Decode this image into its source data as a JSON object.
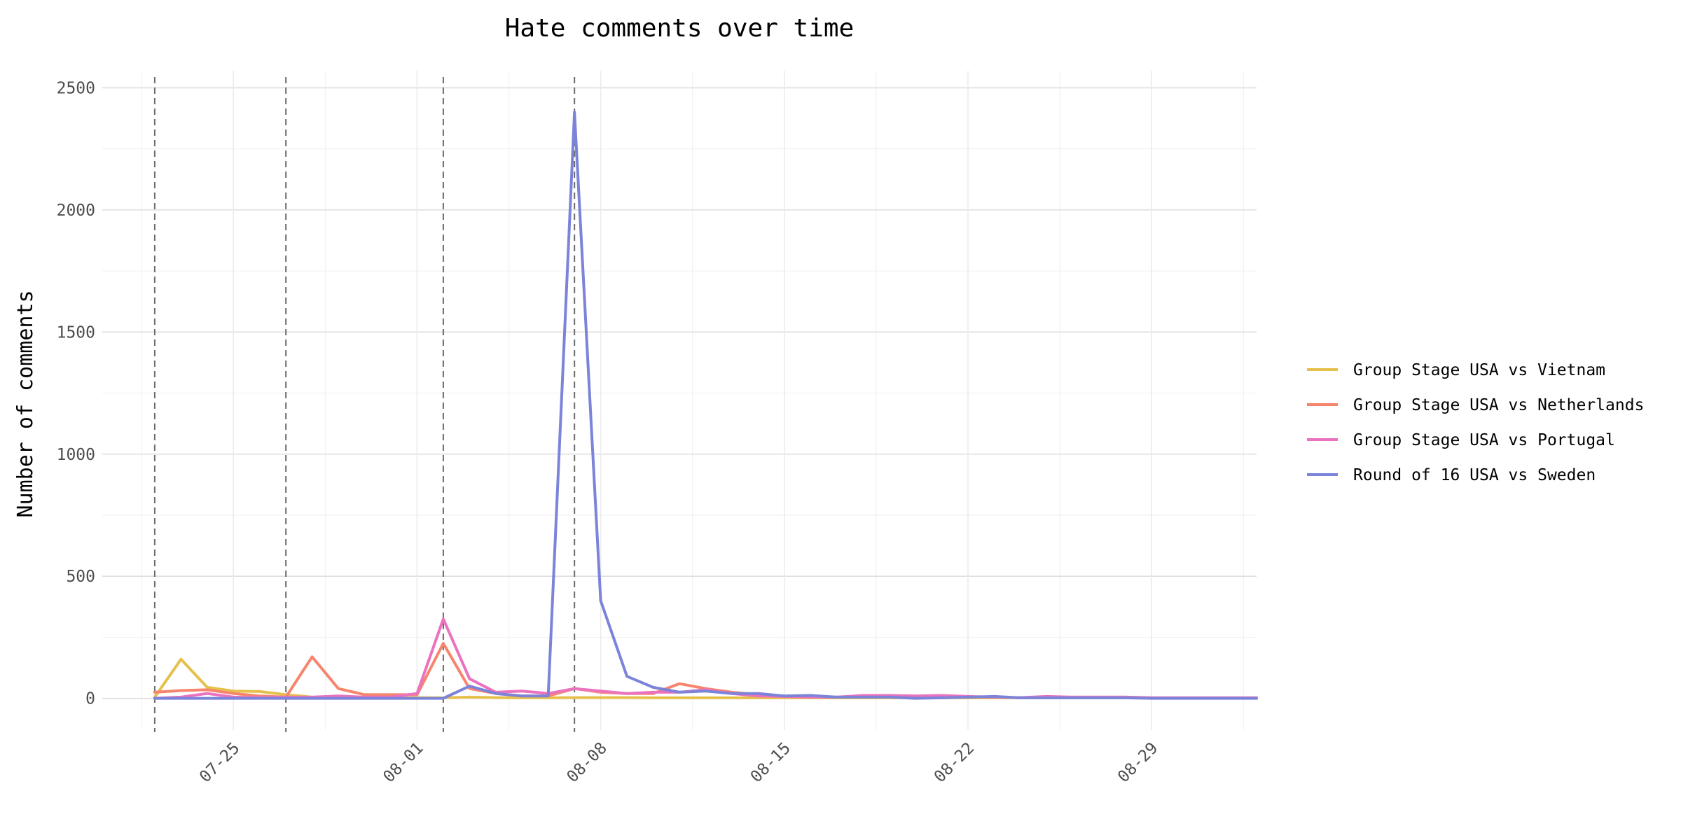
{
  "chart_data": {
    "type": "line",
    "title": "Hate comments over time",
    "xlabel": "",
    "ylabel": "Number of comments",
    "x_axis": {
      "type": "date",
      "tick_labels": [
        "07-25",
        "08-01",
        "08-08",
        "08-15",
        "08-22",
        "08-29"
      ],
      "tick_dates": [
        "07-25",
        "08-01",
        "08-08",
        "08-15",
        "08-22",
        "08-29"
      ],
      "minor_tick_dates": [
        "07-21.5",
        "07-28.5",
        "08-04.5",
        "08-11.5",
        "08-18.5",
        "08-25.5",
        "09-01.5"
      ],
      "range": [
        "07-20",
        "09-02"
      ]
    },
    "y_axis": {
      "ticks": [
        0,
        500,
        1000,
        1500,
        2000,
        2500
      ],
      "minor_ticks": [
        250,
        750,
        1250,
        1750,
        2250
      ],
      "range": [
        -130,
        2570
      ]
    },
    "grid": true,
    "legend_placement": "right",
    "match_dates": [
      "07-22",
      "07-27",
      "08-02",
      "08-07"
    ],
    "dates": [
      "07-22",
      "07-23",
      "07-24",
      "07-25",
      "07-26",
      "07-27",
      "07-28",
      "07-29",
      "07-30",
      "07-31",
      "08-01",
      "08-02",
      "08-03",
      "08-04",
      "08-05",
      "08-06",
      "08-07",
      "08-08",
      "08-09",
      "08-10",
      "08-11",
      "08-12",
      "08-13",
      "08-14",
      "08-15",
      "08-16",
      "08-17",
      "08-18",
      "08-19",
      "08-20",
      "08-21",
      "08-22",
      "08-23",
      "08-24",
      "08-25",
      "08-26",
      "08-27",
      "08-28",
      "08-29",
      "08-30",
      "08-31",
      "09-01",
      "09-02"
    ],
    "series": [
      {
        "name": "Group Stage USA vs Vietnam",
        "color": "#e5c04b",
        "values": [
          5,
          160,
          45,
          30,
          28,
          15,
          5,
          3,
          2,
          2,
          3,
          2,
          5,
          3,
          2,
          2,
          3,
          3,
          3,
          2,
          2,
          2,
          2,
          2,
          2,
          2,
          2,
          2,
          2,
          2,
          2,
          2,
          2,
          2,
          2,
          2,
          2,
          2,
          1,
          1,
          1,
          1,
          1
        ]
      },
      {
        "name": "Group Stage USA vs Netherlands",
        "color": "#f7856e",
        "values": [
          25,
          32,
          35,
          20,
          10,
          5,
          170,
          40,
          15,
          15,
          15,
          225,
          40,
          20,
          10,
          10,
          40,
          25,
          20,
          20,
          60,
          40,
          25,
          15,
          10,
          8,
          5,
          8,
          8,
          8,
          10,
          5,
          5,
          2,
          5,
          5,
          5,
          5,
          2,
          2,
          2,
          2,
          2
        ]
      },
      {
        "name": "Group Stage USA vs Portugal",
        "color": "#ea72be",
        "values": [
          0,
          5,
          20,
          5,
          3,
          5,
          5,
          10,
          5,
          5,
          20,
          325,
          80,
          25,
          30,
          20,
          40,
          30,
          20,
          25,
          25,
          35,
          20,
          10,
          8,
          5,
          5,
          12,
          12,
          10,
          12,
          8,
          5,
          3,
          8,
          5,
          5,
          5,
          2,
          2,
          2,
          2,
          2
        ]
      },
      {
        "name": "Round of 16 USA vs Sweden",
        "color": "#7b84d9",
        "values": [
          0,
          0,
          0,
          0,
          0,
          0,
          0,
          0,
          0,
          0,
          0,
          0,
          50,
          20,
          10,
          10,
          2400,
          400,
          90,
          45,
          25,
          30,
          20,
          20,
          10,
          12,
          5,
          5,
          5,
          0,
          2,
          5,
          8,
          2,
          2,
          2,
          2,
          2,
          0,
          0,
          0,
          0,
          0
        ]
      }
    ]
  }
}
